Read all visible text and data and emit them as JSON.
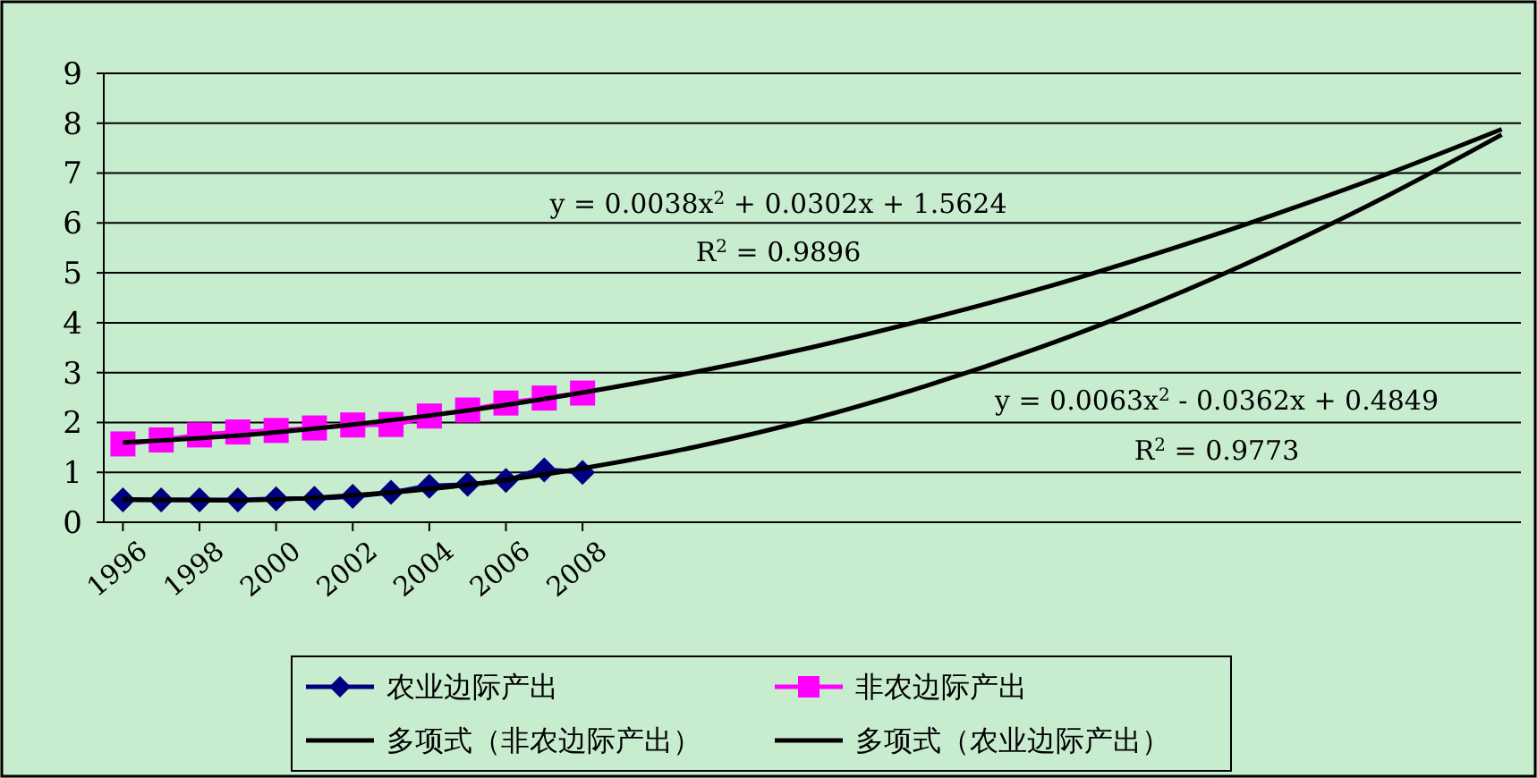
{
  "chart_data": {
    "type": "line",
    "xlim": [
      1995.5,
      2032.5
    ],
    "xticks": [
      1996,
      1998,
      2000,
      2002,
      2004,
      2006,
      2008
    ],
    "ylim": [
      0,
      9
    ],
    "yticks": [
      0,
      1,
      2,
      3,
      4,
      5,
      6,
      7,
      8,
      9
    ],
    "grid": "y",
    "legend": "bottom",
    "series": [
      {
        "name": "农业边际产出",
        "color": "#000080",
        "marker": "diamond",
        "x": [
          1996,
          1997,
          1998,
          1999,
          2000,
          2001,
          2002,
          2003,
          2004,
          2005,
          2006,
          2007,
          2008
        ],
        "values": [
          0.45,
          0.45,
          0.45,
          0.45,
          0.47,
          0.48,
          0.52,
          0.6,
          0.72,
          0.76,
          0.84,
          1.05,
          1.0
        ]
      },
      {
        "name": "非农边际产出",
        "color": "#ff00ff",
        "marker": "square",
        "x": [
          1996,
          1997,
          1998,
          1999,
          2000,
          2001,
          2002,
          2003,
          2004,
          2005,
          2006,
          2007,
          2008
        ],
        "values": [
          1.57,
          1.65,
          1.75,
          1.81,
          1.84,
          1.89,
          1.95,
          1.96,
          2.13,
          2.25,
          2.39,
          2.49,
          2.59
        ]
      },
      {
        "name": "多项式（非农边际产出）",
        "color": "#000000",
        "marker": "none",
        "x": [
          1996,
          1999,
          2002,
          2005,
          2008,
          2011,
          2014,
          2017,
          2020,
          2023,
          2026,
          2029,
          2032
        ],
        "values": [
          1.6,
          1.74,
          1.96,
          2.24,
          2.6,
          3.02,
          3.51,
          4.07,
          4.69,
          5.39,
          6.15,
          6.98,
          7.88
        ]
      },
      {
        "name": "多项式（农业边际产出）",
        "color": "#000000",
        "marker": "none",
        "x": [
          1996,
          1999,
          2002,
          2005,
          2008,
          2011,
          2014,
          2017,
          2020,
          2023,
          2026,
          2029,
          2032
        ],
        "values": [
          0.46,
          0.44,
          0.54,
          0.75,
          1.08,
          1.52,
          2.07,
          2.74,
          3.52,
          4.41,
          5.42,
          6.54,
          7.77
        ]
      }
    ],
    "annotations": [
      "y = 0.0038x$^{2}$ + 0.0302x + 1.5624",
      "R$^{2}$ = 0.9896",
      "y = 0.0063x$^{2}$ - 0.0362x + 0.4849",
      "R$^{2}$ = 0.9773"
    ]
  }
}
